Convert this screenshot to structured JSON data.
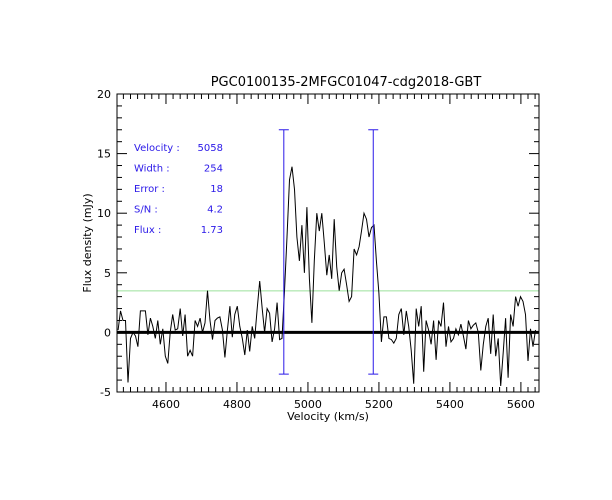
{
  "chart_data": {
    "type": "line",
    "title": "PGC0100135-2MFGC01047-cdg2018-GBT",
    "xlabel": "Velocity (km/s)",
    "ylabel": "Flux density (mJy)",
    "xlim": [
      4462,
      5651
    ],
    "ylim": [
      -5,
      20
    ],
    "xticks": [
      4600,
      4800,
      5000,
      5200,
      5400,
      5600
    ],
    "yticks": [
      -5,
      0,
      5,
      10,
      15,
      20
    ],
    "x_start": 4465,
    "x_step": 7,
    "spectrum": [
      0.2,
      1.8,
      1.0,
      1.0,
      -4.2,
      -0.5,
      0,
      -0.3,
      -1.2,
      1.8,
      1.8,
      1.8,
      -0.2,
      1.2,
      0.5,
      -0.5,
      1.0,
      -1.0,
      0.3,
      -2.0,
      -2.6,
      0,
      1.5,
      0.2,
      0.3,
      2.0,
      -0.3,
      1.5,
      -2.0,
      -1.5,
      -2.0,
      1.0,
      0.5,
      1.2,
      0,
      0.8,
      3.5,
      1.0,
      -0.6,
      1.0,
      1.2,
      1.3,
      0.2,
      -2.1,
      0.2,
      2.2,
      -0.4,
      1.5,
      2.2,
      0.5,
      -0.5,
      -1.9,
      0.2,
      -1.6,
      0.5,
      -0.5,
      2.0,
      4.3,
      2.0,
      0,
      2.0,
      1.6,
      -0.8,
      0.3,
      2.5,
      -0.6,
      -0.5,
      3.5,
      8,
      12.8,
      13.9,
      12,
      8,
      6,
      9,
      5,
      10.5,
      4.5,
      0.8,
      6,
      10,
      8.5,
      10,
      7.5,
      4.8,
      6.5,
      4.5,
      9.5,
      5.5,
      3.5,
      5,
      5.3,
      4,
      2.6,
      3,
      7,
      6.5,
      7.2,
      8.5,
      10,
      9.5,
      8,
      8.8,
      9,
      6,
      3.3,
      -0.8,
      1.3,
      1.3,
      -0.5,
      -0.6,
      -0.9,
      -0.5,
      1.5,
      2,
      -0.2,
      1.8,
      0.5,
      -1.5,
      -4.3,
      2.0,
      0.5,
      2.2,
      -3.3,
      1.0,
      0.2,
      -1.0,
      1.0,
      -2.3,
      1.0,
      0.5,
      2.5,
      -1.2,
      0.5,
      -0.8,
      -0.5,
      0.3,
      -0.2,
      0.7,
      -0.3,
      -1.4,
      1.0,
      0.3,
      0.6,
      0.8,
      0,
      -3.2,
      -1.0,
      0.5,
      1.2,
      -1.8,
      1.5,
      -2.0,
      -0.5,
      -4.5,
      -1.7,
      1.2,
      -3.8,
      1.5,
      0.5,
      3.0,
      2.2,
      3.0,
      2.6,
      1.5,
      -2.4,
      0.3,
      -1.2,
      0.2
    ],
    "baseline": 0,
    "threshold_level": 3.48,
    "width_markers": {
      "v_low": 4932,
      "v_high": 5184,
      "top": 17,
      "bottom": -3.5
    },
    "annotations": [
      {
        "label": "Velocity :",
        "value": "5058"
      },
      {
        "label": "Width :",
        "value": "254"
      },
      {
        "label": "Error :",
        "value": "18"
      },
      {
        "label": "S/N :",
        "value": "4.2"
      },
      {
        "label": "Flux :",
        "value": "1.73"
      }
    ],
    "colors": {
      "spectrum": "#000000",
      "markers": "#2a18e8",
      "threshold": "#9be09b",
      "text": "#2a18e8"
    },
    "grid": false
  }
}
